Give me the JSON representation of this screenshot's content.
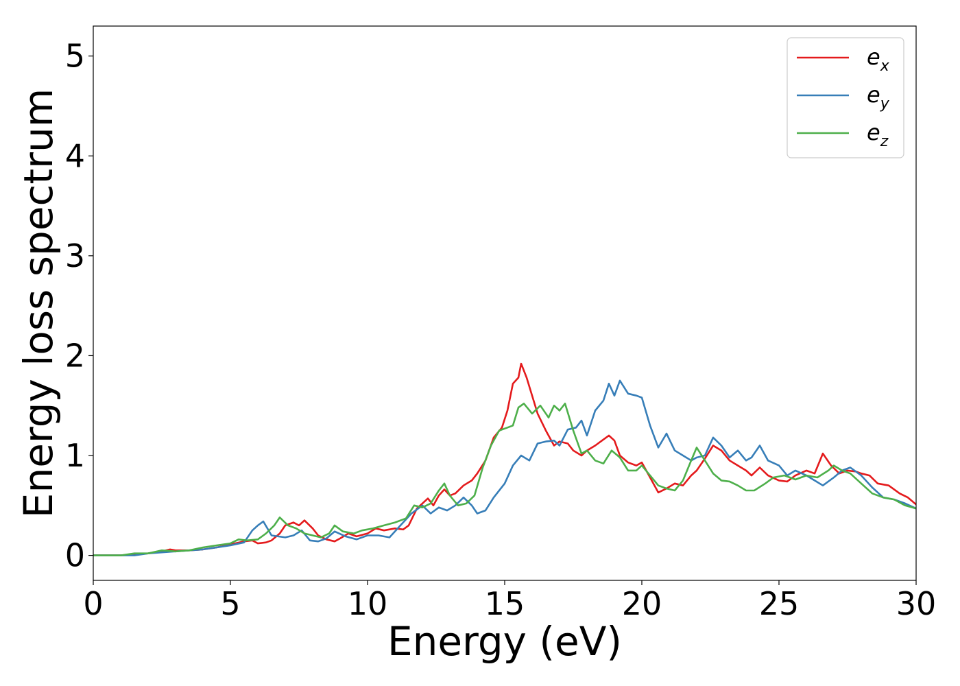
{
  "chart_data": {
    "type": "line",
    "title": "",
    "xlabel": "Energy (eV)",
    "ylabel": "Energy loss spectrum",
    "xlim": [
      0,
      30
    ],
    "ylim": [
      -0.25,
      5.3
    ],
    "xticks": [
      0,
      5,
      10,
      15,
      20,
      25,
      30
    ],
    "xtick_labels": [
      "0",
      "5",
      "10",
      "15",
      "20",
      "25",
      "30"
    ],
    "yticks": [
      0,
      1,
      2,
      3,
      4,
      5
    ],
    "ytick_labels": [
      "0",
      "1",
      "2",
      "3",
      "4",
      "5"
    ],
    "grid": false,
    "legend_position": "top-right",
    "series": [
      {
        "name": "e_x",
        "legend_main": "e",
        "legend_sub": "x",
        "color": "#e41a1c",
        "points": [
          [
            0,
            0
          ],
          [
            1,
            0.0
          ],
          [
            1.5,
            0.01
          ],
          [
            2,
            0.02
          ],
          [
            2.5,
            0.04
          ],
          [
            2.8,
            0.06
          ],
          [
            3,
            0.05
          ],
          [
            3.5,
            0.05
          ],
          [
            4,
            0.06
          ],
          [
            4.5,
            0.08
          ],
          [
            5,
            0.11
          ],
          [
            5.5,
            0.14
          ],
          [
            5.8,
            0.15
          ],
          [
            6,
            0.12
          ],
          [
            6.3,
            0.13
          ],
          [
            6.5,
            0.15
          ],
          [
            6.8,
            0.22
          ],
          [
            7,
            0.3
          ],
          [
            7.3,
            0.33
          ],
          [
            7.5,
            0.3
          ],
          [
            7.7,
            0.35
          ],
          [
            8,
            0.27
          ],
          [
            8.2,
            0.2
          ],
          [
            8.5,
            0.16
          ],
          [
            8.8,
            0.14
          ],
          [
            9,
            0.17
          ],
          [
            9.3,
            0.22
          ],
          [
            9.6,
            0.19
          ],
          [
            10,
            0.22
          ],
          [
            10.3,
            0.27
          ],
          [
            10.6,
            0.25
          ],
          [
            11,
            0.27
          ],
          [
            11.3,
            0.26
          ],
          [
            11.5,
            0.3
          ],
          [
            11.8,
            0.47
          ],
          [
            12,
            0.52
          ],
          [
            12.2,
            0.57
          ],
          [
            12.4,
            0.5
          ],
          [
            12.6,
            0.6
          ],
          [
            12.8,
            0.66
          ],
          [
            13,
            0.6
          ],
          [
            13.2,
            0.62
          ],
          [
            13.5,
            0.7
          ],
          [
            13.8,
            0.75
          ],
          [
            14,
            0.82
          ],
          [
            14.3,
            0.95
          ],
          [
            14.6,
            1.18
          ],
          [
            14.9,
            1.28
          ],
          [
            15.1,
            1.45
          ],
          [
            15.3,
            1.72
          ],
          [
            15.5,
            1.78
          ],
          [
            15.6,
            1.92
          ],
          [
            15.8,
            1.78
          ],
          [
            16,
            1.6
          ],
          [
            16.2,
            1.42
          ],
          [
            16.5,
            1.25
          ],
          [
            16.8,
            1.1
          ],
          [
            17,
            1.14
          ],
          [
            17.3,
            1.12
          ],
          [
            17.5,
            1.05
          ],
          [
            17.8,
            1.0
          ],
          [
            18,
            1.05
          ],
          [
            18.3,
            1.1
          ],
          [
            18.6,
            1.16
          ],
          [
            18.8,
            1.2
          ],
          [
            19,
            1.15
          ],
          [
            19.2,
            1.0
          ],
          [
            19.5,
            0.93
          ],
          [
            19.8,
            0.9
          ],
          [
            20,
            0.93
          ],
          [
            20.3,
            0.78
          ],
          [
            20.6,
            0.63
          ],
          [
            20.9,
            0.67
          ],
          [
            21.2,
            0.72
          ],
          [
            21.5,
            0.7
          ],
          [
            21.8,
            0.8
          ],
          [
            22,
            0.85
          ],
          [
            22.3,
            0.97
          ],
          [
            22.6,
            1.1
          ],
          [
            22.9,
            1.05
          ],
          [
            23.2,
            0.95
          ],
          [
            23.5,
            0.9
          ],
          [
            23.8,
            0.85
          ],
          [
            24,
            0.8
          ],
          [
            24.3,
            0.88
          ],
          [
            24.6,
            0.8
          ],
          [
            25,
            0.75
          ],
          [
            25.3,
            0.74
          ],
          [
            25.6,
            0.8
          ],
          [
            26,
            0.85
          ],
          [
            26.3,
            0.82
          ],
          [
            26.6,
            1.02
          ],
          [
            26.9,
            0.9
          ],
          [
            27.2,
            0.82
          ],
          [
            27.5,
            0.85
          ],
          [
            27.8,
            0.84
          ],
          [
            28,
            0.82
          ],
          [
            28.3,
            0.8
          ],
          [
            28.6,
            0.72
          ],
          [
            29,
            0.7
          ],
          [
            29.4,
            0.62
          ],
          [
            29.7,
            0.58
          ],
          [
            30,
            0.51
          ]
        ]
      },
      {
        "name": "e_y",
        "legend_main": "e",
        "legend_sub": "y",
        "color": "#377eb8",
        "points": [
          [
            0,
            0
          ],
          [
            1,
            0.0
          ],
          [
            1.5,
            0.0
          ],
          [
            2,
            0.02
          ],
          [
            2.5,
            0.03
          ],
          [
            3,
            0.04
          ],
          [
            3.5,
            0.05
          ],
          [
            4,
            0.06
          ],
          [
            4.5,
            0.08
          ],
          [
            5,
            0.1
          ],
          [
            5.5,
            0.13
          ],
          [
            5.8,
            0.25
          ],
          [
            6,
            0.3
          ],
          [
            6.2,
            0.34
          ],
          [
            6.5,
            0.2
          ],
          [
            7,
            0.18
          ],
          [
            7.3,
            0.2
          ],
          [
            7.6,
            0.25
          ],
          [
            7.9,
            0.15
          ],
          [
            8.2,
            0.14
          ],
          [
            8.5,
            0.17
          ],
          [
            8.8,
            0.24
          ],
          [
            9.2,
            0.19
          ],
          [
            9.6,
            0.16
          ],
          [
            10,
            0.2
          ],
          [
            10.4,
            0.2
          ],
          [
            10.8,
            0.18
          ],
          [
            11.2,
            0.3
          ],
          [
            11.6,
            0.42
          ],
          [
            12,
            0.5
          ],
          [
            12.3,
            0.42
          ],
          [
            12.6,
            0.48
          ],
          [
            12.9,
            0.45
          ],
          [
            13.2,
            0.5
          ],
          [
            13.5,
            0.58
          ],
          [
            13.8,
            0.5
          ],
          [
            14,
            0.42
          ],
          [
            14.3,
            0.45
          ],
          [
            14.6,
            0.58
          ],
          [
            15,
            0.72
          ],
          [
            15.3,
            0.9
          ],
          [
            15.6,
            1.0
          ],
          [
            15.9,
            0.95
          ],
          [
            16.2,
            1.12
          ],
          [
            16.5,
            1.14
          ],
          [
            16.8,
            1.15
          ],
          [
            17,
            1.1
          ],
          [
            17.3,
            1.26
          ],
          [
            17.6,
            1.28
          ],
          [
            17.8,
            1.35
          ],
          [
            18,
            1.2
          ],
          [
            18.3,
            1.45
          ],
          [
            18.6,
            1.55
          ],
          [
            18.8,
            1.72
          ],
          [
            19,
            1.6
          ],
          [
            19.2,
            1.75
          ],
          [
            19.5,
            1.62
          ],
          [
            19.8,
            1.6
          ],
          [
            20,
            1.58
          ],
          [
            20.3,
            1.3
          ],
          [
            20.6,
            1.08
          ],
          [
            20.9,
            1.22
          ],
          [
            21.2,
            1.05
          ],
          [
            21.5,
            1.0
          ],
          [
            21.8,
            0.95
          ],
          [
            22,
            0.98
          ],
          [
            22.3,
            1.0
          ],
          [
            22.6,
            1.18
          ],
          [
            22.9,
            1.1
          ],
          [
            23.2,
            0.98
          ],
          [
            23.5,
            1.05
          ],
          [
            23.8,
            0.95
          ],
          [
            24,
            0.98
          ],
          [
            24.3,
            1.1
          ],
          [
            24.6,
            0.95
          ],
          [
            25,
            0.9
          ],
          [
            25.3,
            0.8
          ],
          [
            25.6,
            0.85
          ],
          [
            26,
            0.8
          ],
          [
            26.3,
            0.75
          ],
          [
            26.6,
            0.7
          ],
          [
            27,
            0.78
          ],
          [
            27.3,
            0.85
          ],
          [
            27.6,
            0.88
          ],
          [
            28,
            0.8
          ],
          [
            28.4,
            0.68
          ],
          [
            28.8,
            0.58
          ],
          [
            29.2,
            0.56
          ],
          [
            29.6,
            0.52
          ],
          [
            30,
            0.47
          ]
        ]
      },
      {
        "name": "e_z",
        "legend_main": "e",
        "legend_sub": "z",
        "color": "#4daf4a",
        "points": [
          [
            0,
            0
          ],
          [
            1,
            0.0
          ],
          [
            1.5,
            0.02
          ],
          [
            2,
            0.02
          ],
          [
            2.5,
            0.05
          ],
          [
            3,
            0.04
          ],
          [
            3.5,
            0.05
          ],
          [
            4,
            0.08
          ],
          [
            4.5,
            0.1
          ],
          [
            5,
            0.12
          ],
          [
            5.3,
            0.16
          ],
          [
            5.6,
            0.15
          ],
          [
            6,
            0.16
          ],
          [
            6.3,
            0.22
          ],
          [
            6.6,
            0.3
          ],
          [
            6.8,
            0.38
          ],
          [
            7.1,
            0.3
          ],
          [
            7.4,
            0.27
          ],
          [
            7.7,
            0.22
          ],
          [
            8,
            0.2
          ],
          [
            8.3,
            0.18
          ],
          [
            8.6,
            0.22
          ],
          [
            8.8,
            0.3
          ],
          [
            9.1,
            0.24
          ],
          [
            9.5,
            0.22
          ],
          [
            9.8,
            0.25
          ],
          [
            10.2,
            0.27
          ],
          [
            10.6,
            0.3
          ],
          [
            11,
            0.33
          ],
          [
            11.4,
            0.37
          ],
          [
            11.7,
            0.5
          ],
          [
            12,
            0.48
          ],
          [
            12.3,
            0.52
          ],
          [
            12.6,
            0.65
          ],
          [
            12.8,
            0.72
          ],
          [
            13,
            0.6
          ],
          [
            13.3,
            0.5
          ],
          [
            13.6,
            0.52
          ],
          [
            13.9,
            0.6
          ],
          [
            14.2,
            0.88
          ],
          [
            14.5,
            1.1
          ],
          [
            14.8,
            1.25
          ],
          [
            15.1,
            1.28
          ],
          [
            15.3,
            1.3
          ],
          [
            15.5,
            1.48
          ],
          [
            15.7,
            1.52
          ],
          [
            16,
            1.42
          ],
          [
            16.3,
            1.5
          ],
          [
            16.6,
            1.38
          ],
          [
            16.8,
            1.5
          ],
          [
            17,
            1.45
          ],
          [
            17.2,
            1.52
          ],
          [
            17.5,
            1.25
          ],
          [
            17.8,
            1.02
          ],
          [
            18,
            1.05
          ],
          [
            18.3,
            0.95
          ],
          [
            18.6,
            0.92
          ],
          [
            18.9,
            1.05
          ],
          [
            19.2,
            0.98
          ],
          [
            19.5,
            0.85
          ],
          [
            19.8,
            0.85
          ],
          [
            20,
            0.9
          ],
          [
            20.3,
            0.8
          ],
          [
            20.6,
            0.7
          ],
          [
            20.9,
            0.67
          ],
          [
            21.2,
            0.65
          ],
          [
            21.5,
            0.75
          ],
          [
            21.8,
            0.95
          ],
          [
            22,
            1.08
          ],
          [
            22.3,
            0.95
          ],
          [
            22.6,
            0.82
          ],
          [
            22.9,
            0.75
          ],
          [
            23.2,
            0.74
          ],
          [
            23.5,
            0.7
          ],
          [
            23.8,
            0.65
          ],
          [
            24.1,
            0.65
          ],
          [
            24.5,
            0.72
          ],
          [
            24.8,
            0.78
          ],
          [
            25.2,
            0.8
          ],
          [
            25.6,
            0.76
          ],
          [
            26,
            0.8
          ],
          [
            26.4,
            0.78
          ],
          [
            26.8,
            0.85
          ],
          [
            27,
            0.9
          ],
          [
            27.3,
            0.85
          ],
          [
            27.6,
            0.82
          ],
          [
            28,
            0.72
          ],
          [
            28.4,
            0.62
          ],
          [
            28.8,
            0.58
          ],
          [
            29.2,
            0.56
          ],
          [
            29.6,
            0.5
          ],
          [
            30,
            0.47
          ]
        ]
      }
    ]
  }
}
